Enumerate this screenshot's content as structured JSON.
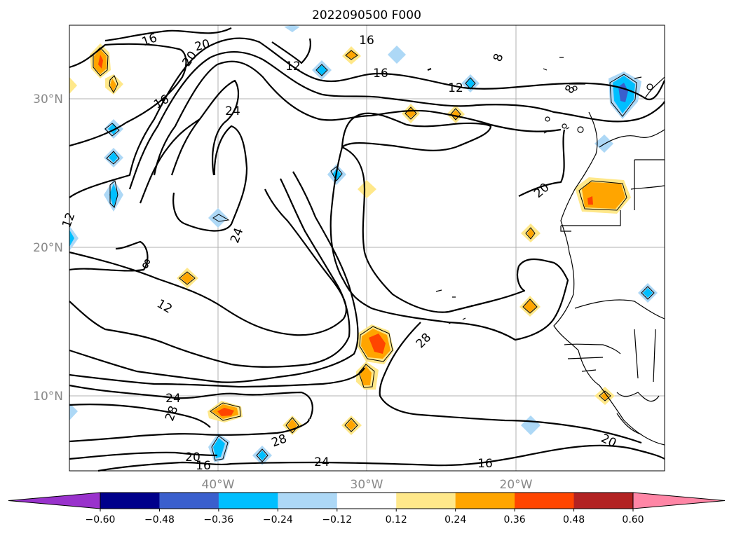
{
  "title": "2022090500 F000",
  "axes": {
    "lon_labels": [
      "40°W",
      "30°W",
      "20°W"
    ],
    "lat_labels": [
      "30°N",
      "20°N",
      "10°N"
    ]
  },
  "contour_labels": [
    "16",
    "20",
    "20",
    "16",
    "24",
    "16",
    "12",
    "16",
    "12",
    "8",
    "8",
    "24",
    "8",
    "12",
    "20",
    "28",
    "24",
    "28",
    "20",
    "16",
    "24",
    "16",
    "28",
    "20",
    "12"
  ],
  "colorbar": {
    "colors": [
      "#9932CC",
      "#00008B",
      "#3A5FCD",
      "#00BFFF",
      "#ADD8F6",
      "#FFFFFF",
      "#FFE88A",
      "#FFA500",
      "#FF4500",
      "#B22222",
      "#FF86A6"
    ],
    "tick_labels": [
      "−0.60",
      "−0.48",
      "−0.36",
      "−0.24",
      "−0.12",
      "0.12",
      "0.24",
      "0.36",
      "0.48",
      "0.60"
    ]
  }
}
